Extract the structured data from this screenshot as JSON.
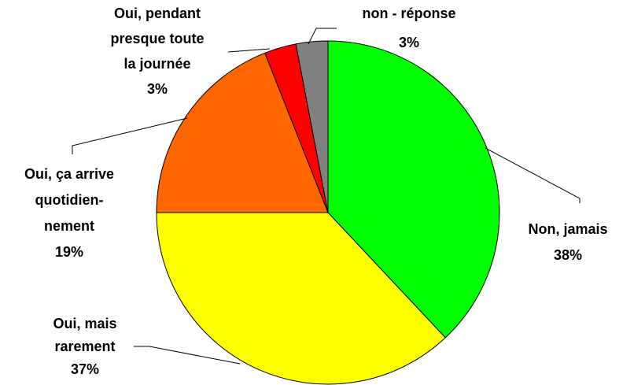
{
  "chart_data": {
    "type": "pie",
    "categories": [
      "Non, jamais",
      "Oui, mais\nrarement",
      "Oui, ça arrive\nquotidien-\nnement",
      "Oui, pendant\npresque toute\nla journée",
      "non - réponse"
    ],
    "values": [
      38,
      37,
      19,
      3,
      3
    ],
    "value_labels": [
      "38%",
      "37%",
      "19%",
      "3%",
      "3%"
    ],
    "colors": [
      "#00ff00",
      "#ffff00",
      "#ff6600",
      "#ff0000",
      "#808080"
    ]
  }
}
